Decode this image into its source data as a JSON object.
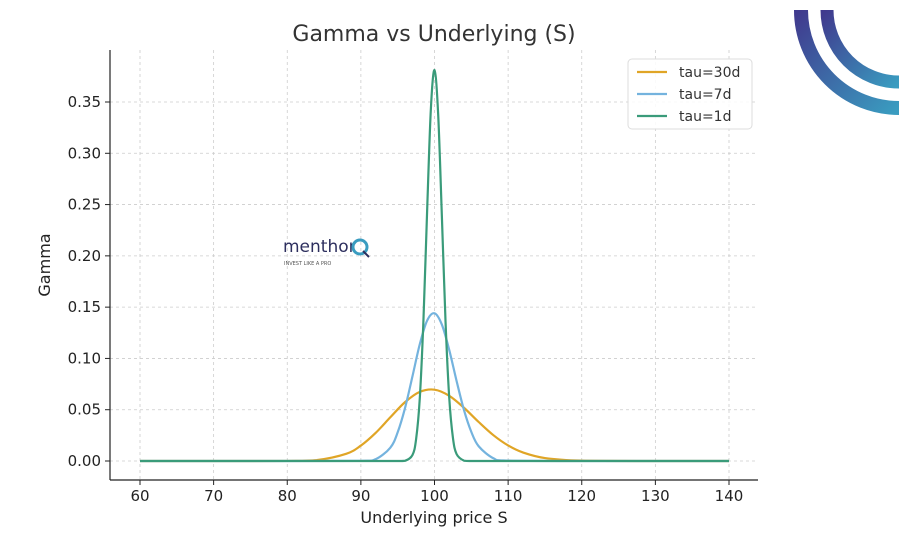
{
  "chart_data": {
    "type": "line",
    "title": "Gamma vs Underlying (S)",
    "xlabel": "Underlying price S",
    "ylabel": "Gamma",
    "xlim": [
      55,
      143
    ],
    "ylim": [
      -0.018,
      0.4
    ],
    "xticks": [
      60,
      70,
      80,
      90,
      100,
      110,
      120,
      130,
      140
    ],
    "xtick_labels": [
      "60",
      "70",
      "80",
      "90",
      "100",
      "110",
      "120",
      "130",
      "140"
    ],
    "yticks": [
      0,
      0.05,
      0.1,
      0.15,
      0.2,
      0.25,
      0.3,
      0.35
    ],
    "ytick_labels": [
      "0.00",
      "0.05",
      "0.10",
      "0.15",
      "0.20",
      "0.25",
      "0.30",
      "0.35"
    ],
    "grid": true,
    "legend_position": "top-right",
    "series": [
      {
        "name": "tau=30d",
        "color": "#e0a526",
        "x": [
          60,
          70,
          80,
          84,
          88,
          90,
          92,
          94,
          96,
          98,
          100,
          102,
          104,
          106,
          108,
          110,
          112,
          115,
          120,
          130,
          140
        ],
        "y": [
          0,
          0,
          5e-05,
          0.00088,
          0.00702,
          0.01503,
          0.02735,
          0.04261,
          0.05738,
          0.06736,
          0.06955,
          0.0636,
          0.05192,
          0.03802,
          0.02516,
          0.01514,
          0.00834,
          0.00289,
          0.00034,
          0,
          0
        ]
      },
      {
        "name": "tau=7d",
        "color": "#74b3de",
        "x": [
          60,
          80,
          90,
          92,
          94,
          95,
          96,
          97,
          98,
          99,
          100,
          101,
          102,
          103,
          104,
          105,
          106,
          108,
          110,
          120,
          140
        ],
        "y": [
          0,
          0,
          0.00012,
          0.00176,
          0.01301,
          0.028,
          0.05176,
          0.08233,
          0.1138,
          0.1369,
          0.144,
          0.133,
          0.1083,
          0.078,
          0.0498,
          0.0284,
          0.01439,
          0.00269,
          0.00034,
          0,
          0
        ]
      },
      {
        "name": "tau=1d",
        "color": "#3a9b7a",
        "x": [
          60,
          90,
          95,
          96,
          97,
          97.5,
          98,
          98.5,
          99,
          99.5,
          100,
          100.5,
          101,
          101.5,
          102,
          102.5,
          103,
          104,
          105,
          110,
          140
        ],
        "y": [
          0,
          0,
          0,
          0.0002,
          0.00578,
          0.02122,
          0.06098,
          0.1376,
          0.2442,
          0.3423,
          0.3811,
          0.3377,
          0.2389,
          0.1356,
          0.0618,
          0.02279,
          0.00678,
          0.00032,
          0,
          0,
          0
        ]
      }
    ]
  },
  "watermark": {
    "brand": "menthor",
    "letter": "Q",
    "tagline": "INVEST LIKE A PRO"
  },
  "colors": {
    "logo_start": "#403a8e",
    "logo_end": "#3a9cc0"
  }
}
